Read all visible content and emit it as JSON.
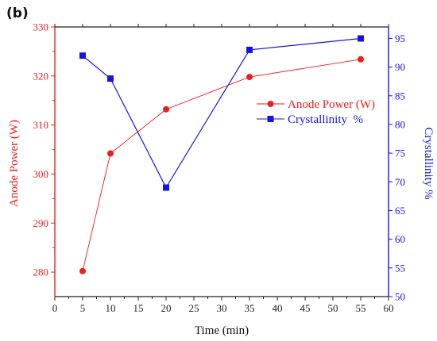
{
  "panel_label": "(b)",
  "colors": {
    "anode": "#ee1c1c",
    "crystallinity": "#1414e6",
    "axis": "#222222",
    "background": "#ffffff"
  },
  "chart_data": {
    "type": "line",
    "panel": "(b)",
    "xlabel": "Time (min)",
    "y_left_label": "Anode Power (W)",
    "y_right_label": "Crystallinity %",
    "xlim": [
      0,
      60
    ],
    "ylim_left": [
      275,
      330
    ],
    "ylim_right": [
      50,
      97
    ],
    "x_ticks": [
      "0",
      "5",
      "10",
      "15",
      "20",
      "25",
      "30",
      "35",
      "40",
      "45",
      "50",
      "55",
      "60"
    ],
    "y_left_ticks": [
      "280",
      "290",
      "300",
      "310",
      "320",
      "330"
    ],
    "y_right_ticks": [
      "50",
      "55",
      "60",
      "65",
      "70",
      "75",
      "80",
      "85",
      "90",
      "95"
    ],
    "grid": false,
    "legend_placement": "center-right",
    "series": [
      {
        "name": "Anode Power (W)",
        "axis": "left",
        "marker": "circle",
        "x": [
          5,
          10,
          20,
          35,
          55
        ],
        "y": [
          280.2,
          304.2,
          313.2,
          319.8,
          323.4
        ]
      },
      {
        "name": "Crystallinity  %",
        "axis": "right",
        "marker": "square",
        "x": [
          5,
          10,
          20,
          35,
          55
        ],
        "y": [
          92,
          88,
          69,
          93,
          95
        ]
      }
    ]
  }
}
